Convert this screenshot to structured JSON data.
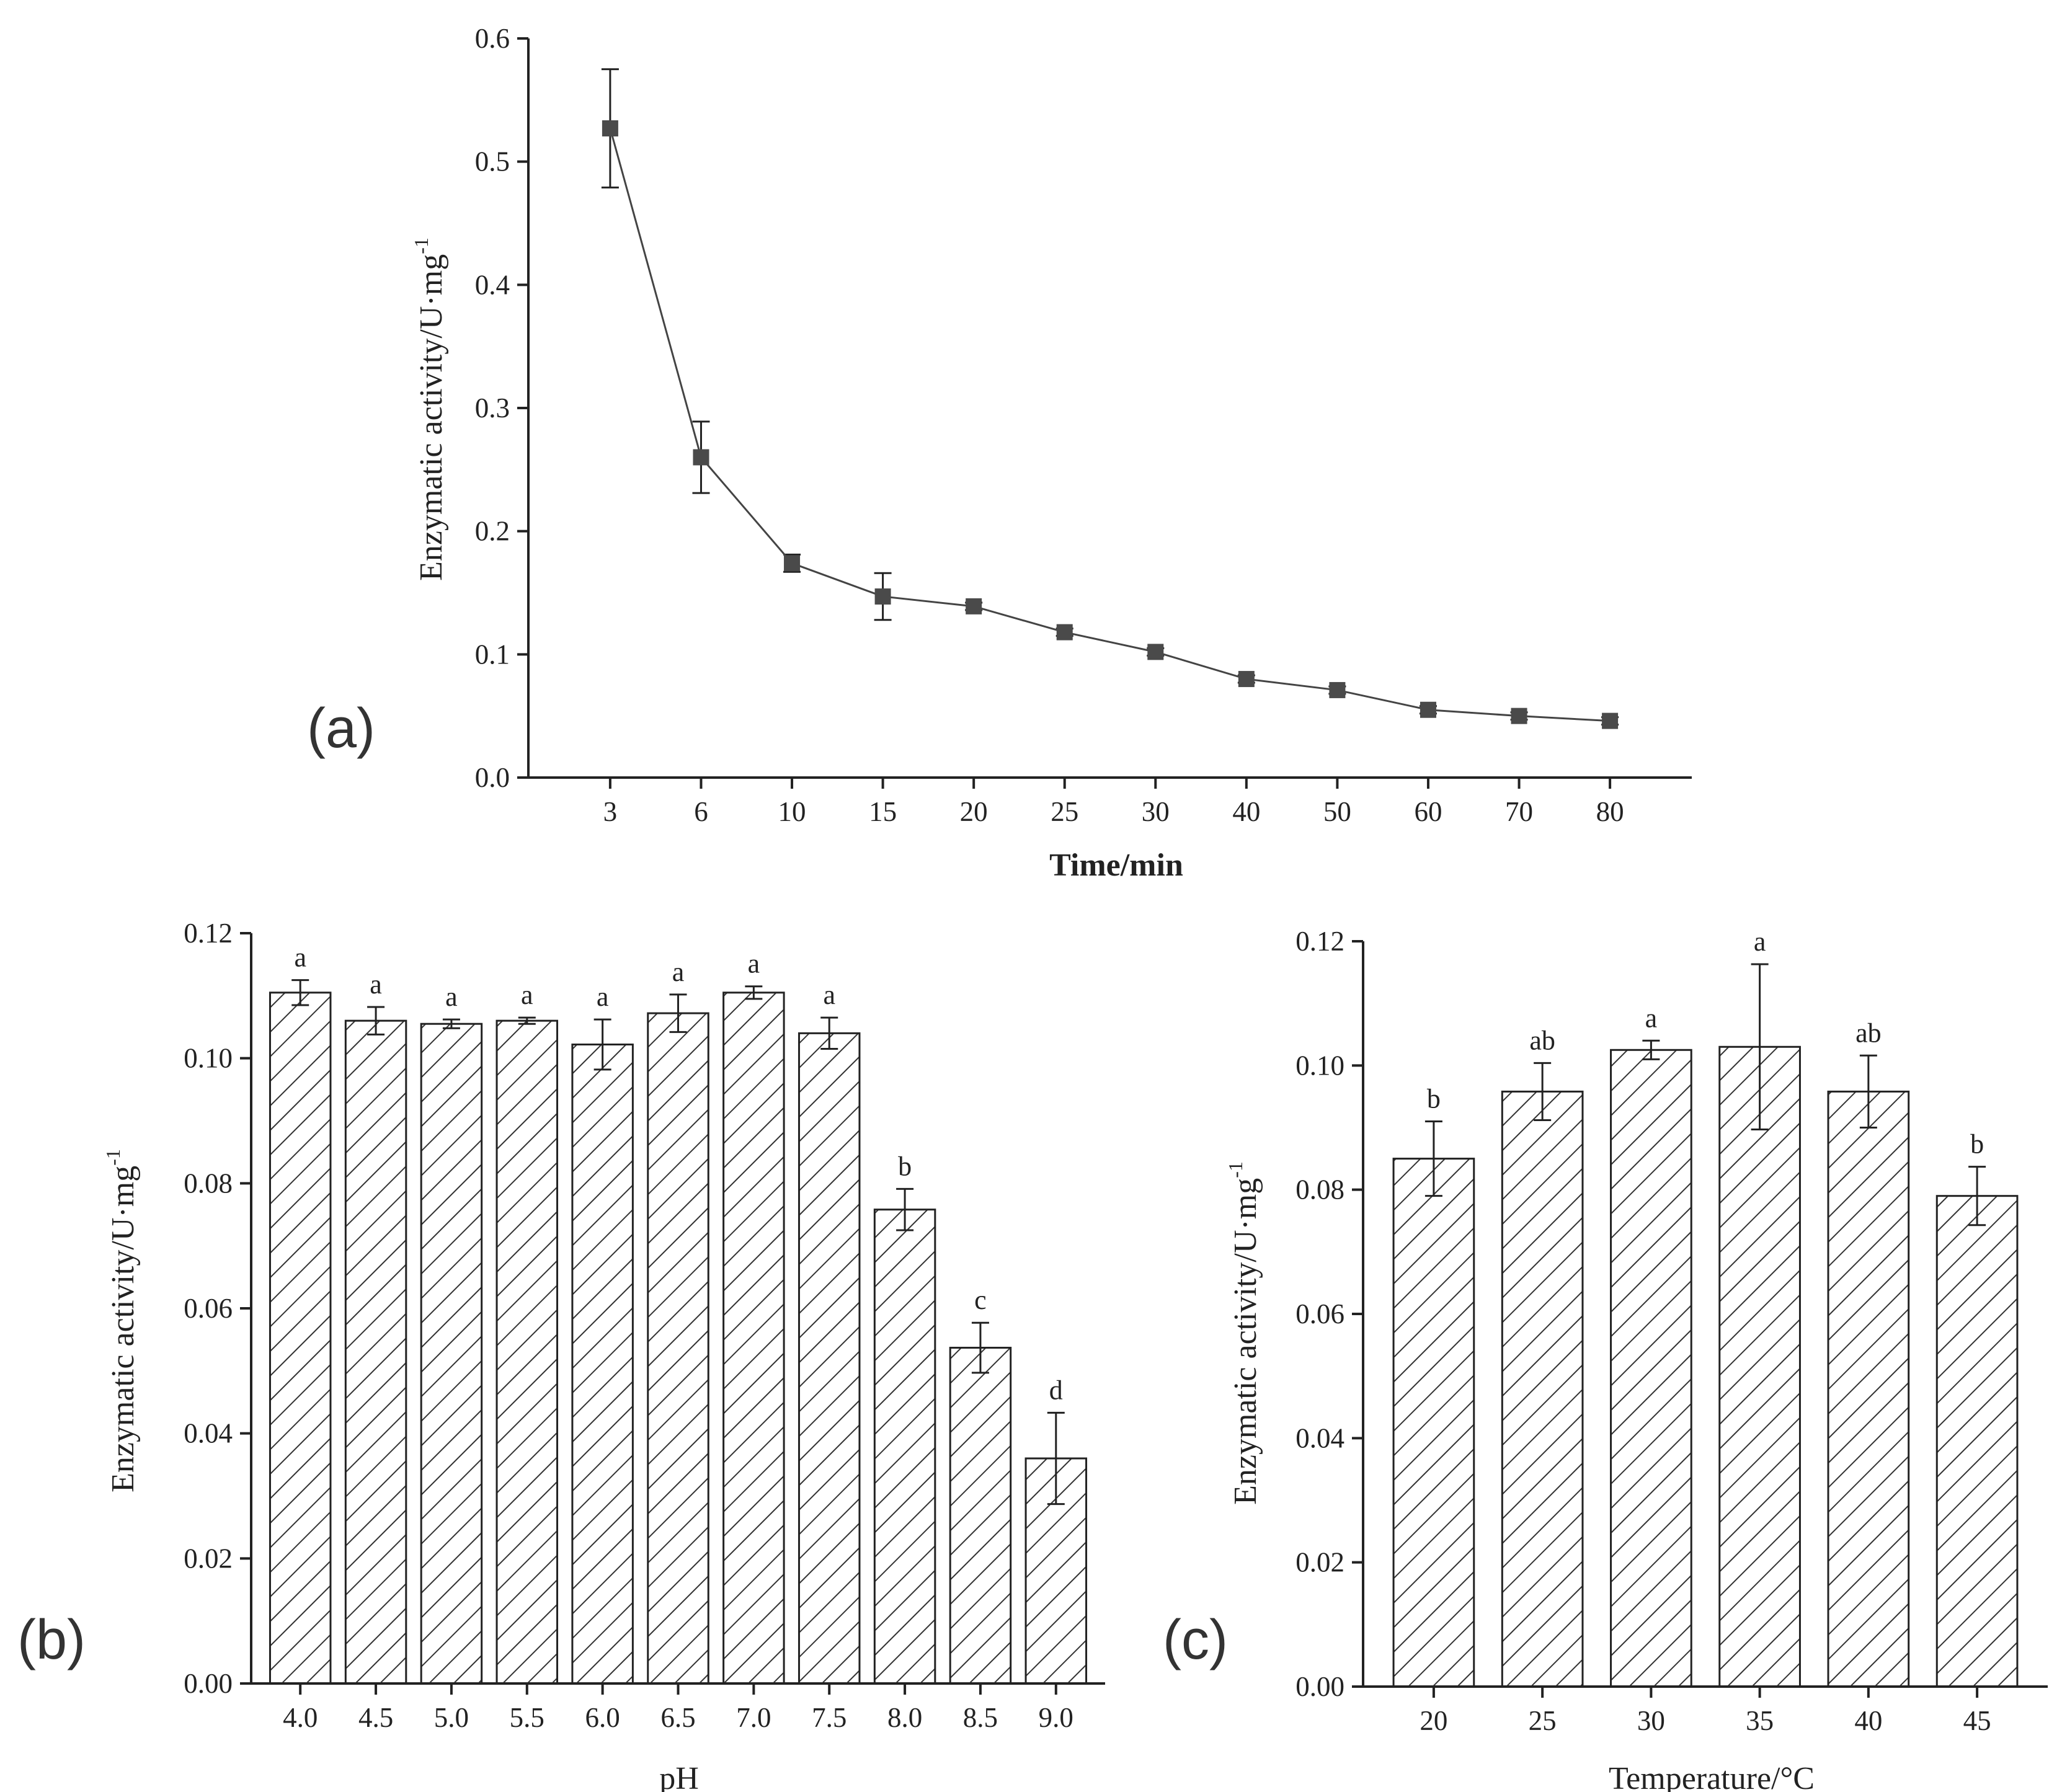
{
  "chart_data": [
    {
      "panel": "(a)",
      "type": "line",
      "xlabel": "Time/min",
      "ylabel": "Enzymatic activity/U·mg",
      "ylabel_sup": "-1",
      "categories": [
        "3",
        "6",
        "10",
        "15",
        "20",
        "25",
        "30",
        "40",
        "50",
        "60",
        "70",
        "80"
      ],
      "values": [
        0.527,
        0.26,
        0.174,
        0.147,
        0.139,
        0.118,
        0.102,
        0.08,
        0.071,
        0.055,
        0.05,
        0.046
      ],
      "errors": [
        0.048,
        0.029,
        0.007,
        0.019,
        0.003,
        0.003,
        0.003,
        0.003,
        0.003,
        0.003,
        0.003,
        0.003
      ],
      "ylim": [
        0,
        0.6
      ],
      "yticks": [
        "0.0",
        "0.1",
        "0.2",
        "0.3",
        "0.4",
        "0.5",
        "0.6"
      ]
    },
    {
      "panel": "(b)",
      "type": "bar",
      "xlabel": "pH",
      "ylabel": "Enzymatic activity/U·mg",
      "ylabel_sup": "-1",
      "categories": [
        "4.0",
        "4.5",
        "5.0",
        "5.5",
        "6.0",
        "6.5",
        "7.0",
        "7.5",
        "8.0",
        "8.5",
        "9.0"
      ],
      "values": [
        0.1105,
        0.106,
        0.1055,
        0.106,
        0.1022,
        0.1072,
        0.1105,
        0.104,
        0.0758,
        0.0537,
        0.036
      ],
      "errors": [
        0.002,
        0.0022,
        0.0007,
        0.0005,
        0.004,
        0.003,
        0.001,
        0.0025,
        0.0033,
        0.004,
        0.0073
      ],
      "letters": [
        "a",
        "a",
        "a",
        "a",
        "a",
        "a",
        "a",
        "a",
        "b",
        "c",
        "d"
      ],
      "ylim": [
        0,
        0.12
      ],
      "yticks": [
        "0.00",
        "0.02",
        "0.04",
        "0.06",
        "0.08",
        "0.10",
        "0.12"
      ]
    },
    {
      "panel": "(c)",
      "type": "bar",
      "xlabel": "Temperature/°C",
      "ylabel": "Enzymatic activity/U·mg",
      "ylabel_sup": "-1",
      "categories": [
        "20",
        "25",
        "30",
        "35",
        "40",
        "45"
      ],
      "values": [
        0.085,
        0.0958,
        0.1025,
        0.103,
        0.0958,
        0.079
      ],
      "errors": [
        0.006,
        0.0046,
        0.0015,
        0.0133,
        0.0058,
        0.0047
      ],
      "letters": [
        "b",
        "ab",
        "a",
        "a",
        "ab",
        "b"
      ],
      "ylim": [
        0,
        0.12
      ],
      "yticks": [
        "0.00",
        "0.02",
        "0.04",
        "0.06",
        "0.08",
        "0.10",
        "0.12"
      ]
    }
  ],
  "colors": {
    "line": "#444444",
    "marker": "#4a4a4a",
    "axis": "#222222",
    "bar_stroke": "#222222",
    "hatch": "#333333"
  }
}
